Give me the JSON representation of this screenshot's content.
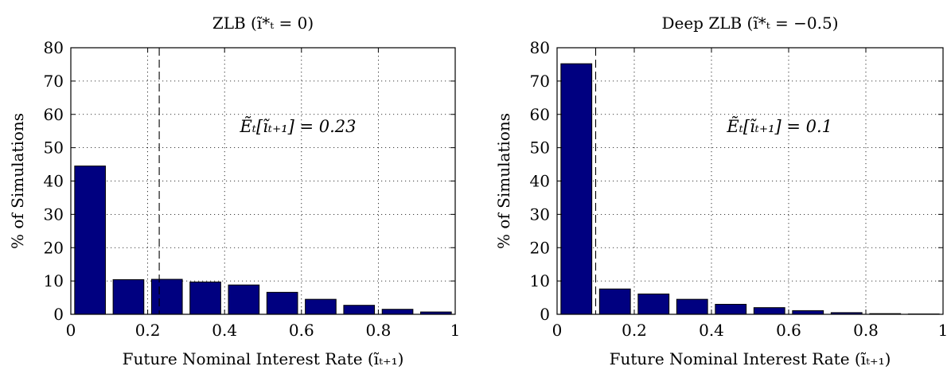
{
  "chart_data": [
    {
      "type": "bar",
      "title": "ZLB (ĩ*ₜ = 0)",
      "xlabel": "Future Nominal Interest Rate (ĩₜ₊₁)",
      "ylabel": "% of Simulations",
      "xlim": [
        0,
        1
      ],
      "ylim": [
        0,
        80
      ],
      "xticks": [
        "0",
        "0.2",
        "0.4",
        "0.6",
        "0.8",
        "1"
      ],
      "yticks": [
        "0",
        "10",
        "20",
        "30",
        "40",
        "50",
        "60",
        "70",
        "80"
      ],
      "grid": true,
      "bar_color": "#000080",
      "x": [
        0.05,
        0.15,
        0.25,
        0.35,
        0.45,
        0.55,
        0.65,
        0.75,
        0.85,
        0.95
      ],
      "values": [
        44.5,
        10.4,
        10.5,
        9.7,
        8.8,
        6.6,
        4.5,
        2.7,
        1.5,
        0.7
      ],
      "expected_value": 0.23,
      "annotation": "Ẽₜ[ĩₜ₊₁] = 0.23"
    },
    {
      "type": "bar",
      "title": "Deep ZLB (ĩ*ₜ = −0.5)",
      "xlabel": "Future Nominal Interest Rate (ĩₜ₊₁)",
      "ylabel": "% of Simulations",
      "xlim": [
        0,
        1
      ],
      "ylim": [
        0,
        80
      ],
      "xticks": [
        "0",
        "0.2",
        "0.4",
        "0.6",
        "0.8",
        "1"
      ],
      "yticks": [
        "0",
        "10",
        "20",
        "30",
        "40",
        "50",
        "60",
        "70",
        "80"
      ],
      "grid": true,
      "bar_color": "#000080",
      "x": [
        0.05,
        0.15,
        0.25,
        0.35,
        0.45,
        0.55,
        0.65,
        0.75,
        0.85,
        0.95
      ],
      "values": [
        75.2,
        7.6,
        6.1,
        4.5,
        3.0,
        2.0,
        1.1,
        0.5,
        0.2,
        0.1
      ],
      "expected_value": 0.1,
      "annotation": "Ẽₜ[ĩₜ₊₁] = 0.1"
    }
  ]
}
